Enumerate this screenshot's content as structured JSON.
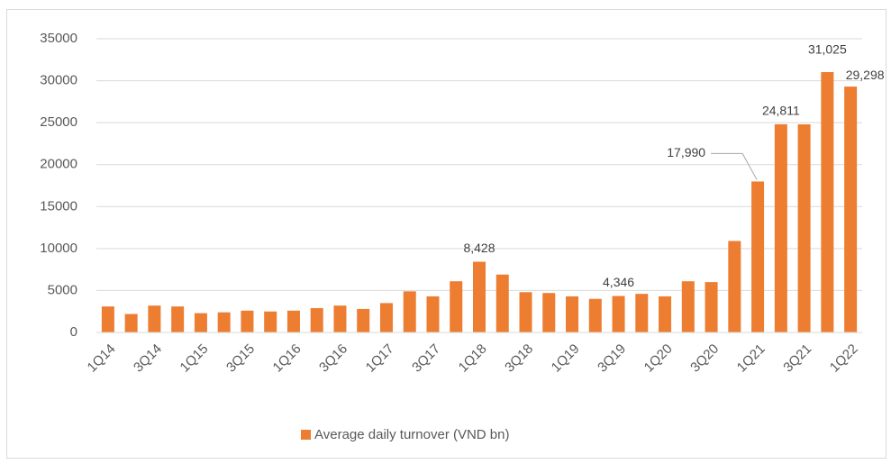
{
  "chart_data": {
    "type": "bar",
    "categories": [
      "1Q14",
      null,
      "3Q14",
      null,
      "1Q15",
      null,
      "3Q15",
      null,
      "1Q16",
      null,
      "3Q16",
      null,
      "1Q17",
      null,
      "3Q17",
      null,
      "1Q18",
      null,
      "3Q18",
      null,
      "1Q19",
      null,
      "3Q19",
      null,
      "1Q20",
      null,
      "3Q20",
      null,
      "1Q21",
      null,
      "3Q21",
      null,
      "1Q22"
    ],
    "series": [
      {
        "name": "Average daily turnover (VND bn)",
        "color": "#ed7d31",
        "values": [
          3100,
          2200,
          3200,
          3100,
          2300,
          2400,
          2600,
          2500,
          2600,
          2900,
          3200,
          2800,
          3500,
          4900,
          4300,
          6100,
          8428,
          6900,
          4800,
          4700,
          4300,
          4000,
          4346,
          4600,
          4300,
          6100,
          6000,
          10900,
          17990,
          24811,
          24800,
          31025,
          29298
        ],
        "value_labels": [
          null,
          null,
          null,
          null,
          null,
          null,
          null,
          null,
          null,
          null,
          null,
          null,
          null,
          null,
          null,
          null,
          "8,428",
          null,
          null,
          null,
          null,
          null,
          "4,346",
          null,
          null,
          null,
          null,
          null,
          "17,990",
          "24,811",
          null,
          "31,025",
          "29,298"
        ]
      }
    ],
    "ylim": [
      0,
      35000
    ],
    "yticks": [
      0,
      5000,
      10000,
      15000,
      20000,
      25000,
      30000,
      35000
    ],
    "grid": true,
    "legend": "bottom"
  }
}
